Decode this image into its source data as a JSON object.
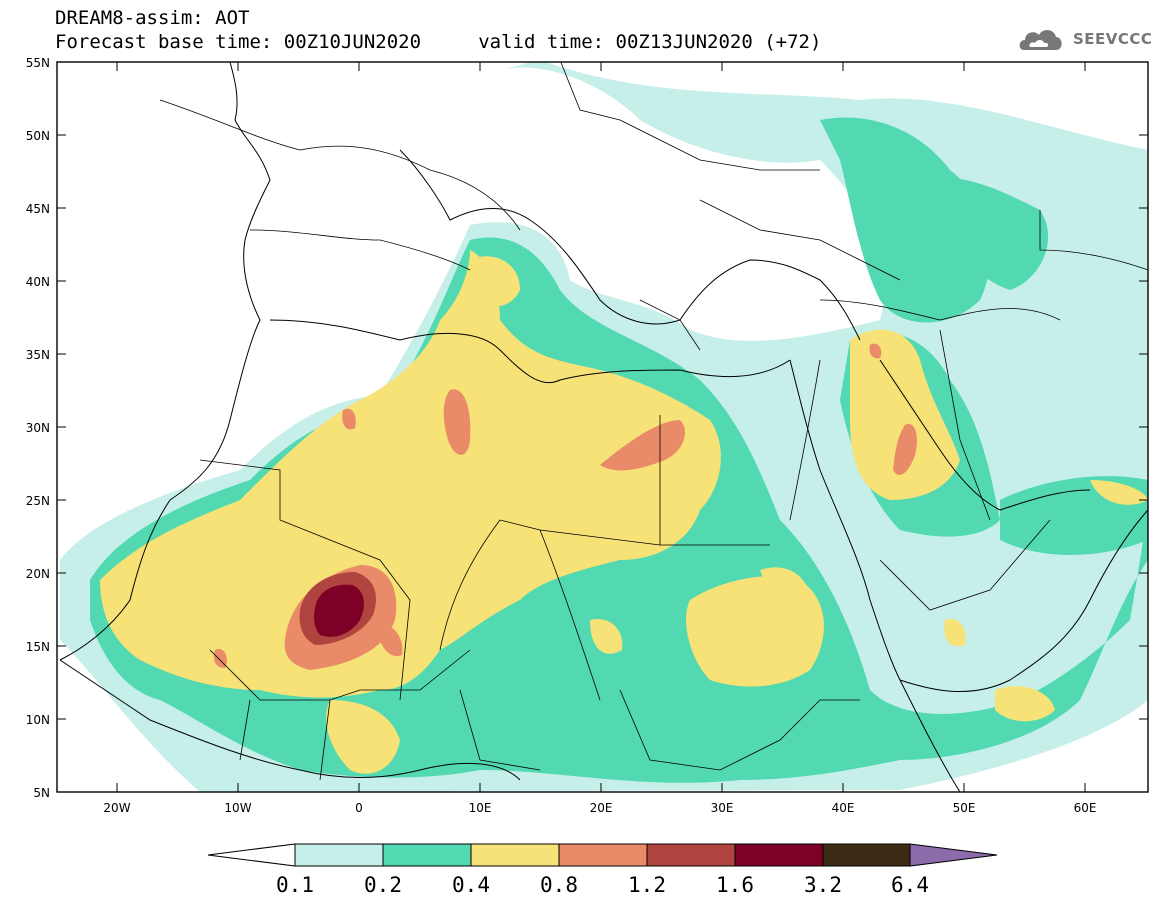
{
  "header": {
    "title_line1": "DREAM8-assim: AOT",
    "title_line2": "Forecast base time: 00Z10JUN2020     valid time: 00Z13JUN2020 (+72)"
  },
  "logo": {
    "text": "SEEVCCC",
    "icon": "cloud-icon"
  },
  "map": {
    "lon_range": [
      -25,
      65
    ],
    "lat_range": [
      5,
      55
    ],
    "lat_ticks": [
      "55N",
      "50N",
      "45N",
      "40N",
      "35N",
      "30N",
      "25N",
      "20N",
      "15N",
      "10N",
      "5N"
    ],
    "lon_ticks": [
      "20W",
      "10W",
      "0",
      "10E",
      "20E",
      "30E",
      "40E",
      "50E",
      "60E"
    ]
  },
  "colorbar": {
    "labels": [
      "0.1",
      "0.2",
      "0.4",
      "0.8",
      "1.2",
      "1.6",
      "3.2",
      "6.4"
    ],
    "colors": {
      "under": "#ffffff",
      "c1": "#c6efe9",
      "c2": "#52d9b2",
      "c3": "#f6e276",
      "c4": "#e98b68",
      "c5": "#b0443e",
      "c6": "#7d0027",
      "c7": "#3d2a15",
      "over": "#8d6bab"
    }
  }
}
